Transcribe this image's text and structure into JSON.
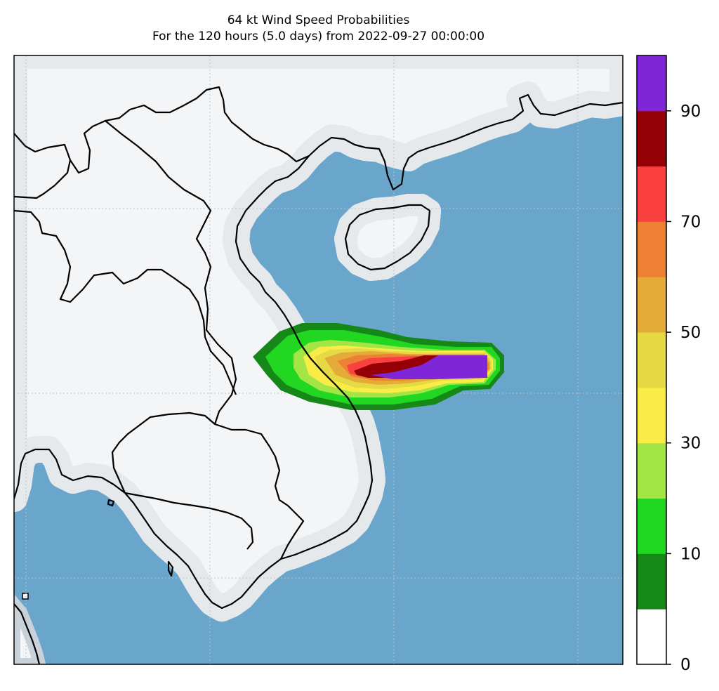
{
  "title": {
    "line1": "64 kt Wind Speed Probabilities",
    "line2": "For the 120 hours (5.0 days) from 2022-09-27 00:00:00"
  },
  "colors": {
    "land": "#f4f5f7",
    "ocean": "#6aa6cc",
    "coast_halo": [
      "#a9b6c2",
      "#c9d1d9",
      "#e6e9ec"
    ],
    "border": "#000000",
    "gridline": "#b8c2cc"
  },
  "colorbar": {
    "bins": [
      {
        "min": 0,
        "max": 5,
        "color": "#ffffff"
      },
      {
        "min": 5,
        "max": 10,
        "color": "#168818"
      },
      {
        "min": 10,
        "max": 20,
        "color": "#22d722"
      },
      {
        "min": 20,
        "max": 30,
        "color": "#a3e545"
      },
      {
        "min": 30,
        "max": 40,
        "color": "#f9ec47"
      },
      {
        "min": 40,
        "max": 50,
        "color": "#e6da44"
      },
      {
        "min": 50,
        "max": 60,
        "color": "#e5ab39"
      },
      {
        "min": 60,
        "max": 70,
        "color": "#ed8033"
      },
      {
        "min": 70,
        "max": 80,
        "color": "#fb4041"
      },
      {
        "min": 80,
        "max": 90,
        "color": "#940003"
      },
      {
        "min": 90,
        "max": 100,
        "color": "#7e26d8"
      }
    ],
    "ticks": [
      0,
      10,
      30,
      50,
      70,
      90
    ]
  },
  "probability_contours": [
    {
      "level": 5,
      "color": "#168818"
    },
    {
      "level": 10,
      "color": "#22d722"
    },
    {
      "level": 20,
      "color": "#a3e545"
    },
    {
      "level": 30,
      "color": "#f9ec47"
    },
    {
      "level": 40,
      "color": "#e6da44"
    },
    {
      "level": 50,
      "color": "#e5ab39"
    },
    {
      "level": 60,
      "color": "#ed8033"
    },
    {
      "level": 70,
      "color": "#fb4041"
    },
    {
      "level": 80,
      "color": "#940003"
    },
    {
      "level": 90,
      "color": "#7e26d8"
    }
  ]
}
